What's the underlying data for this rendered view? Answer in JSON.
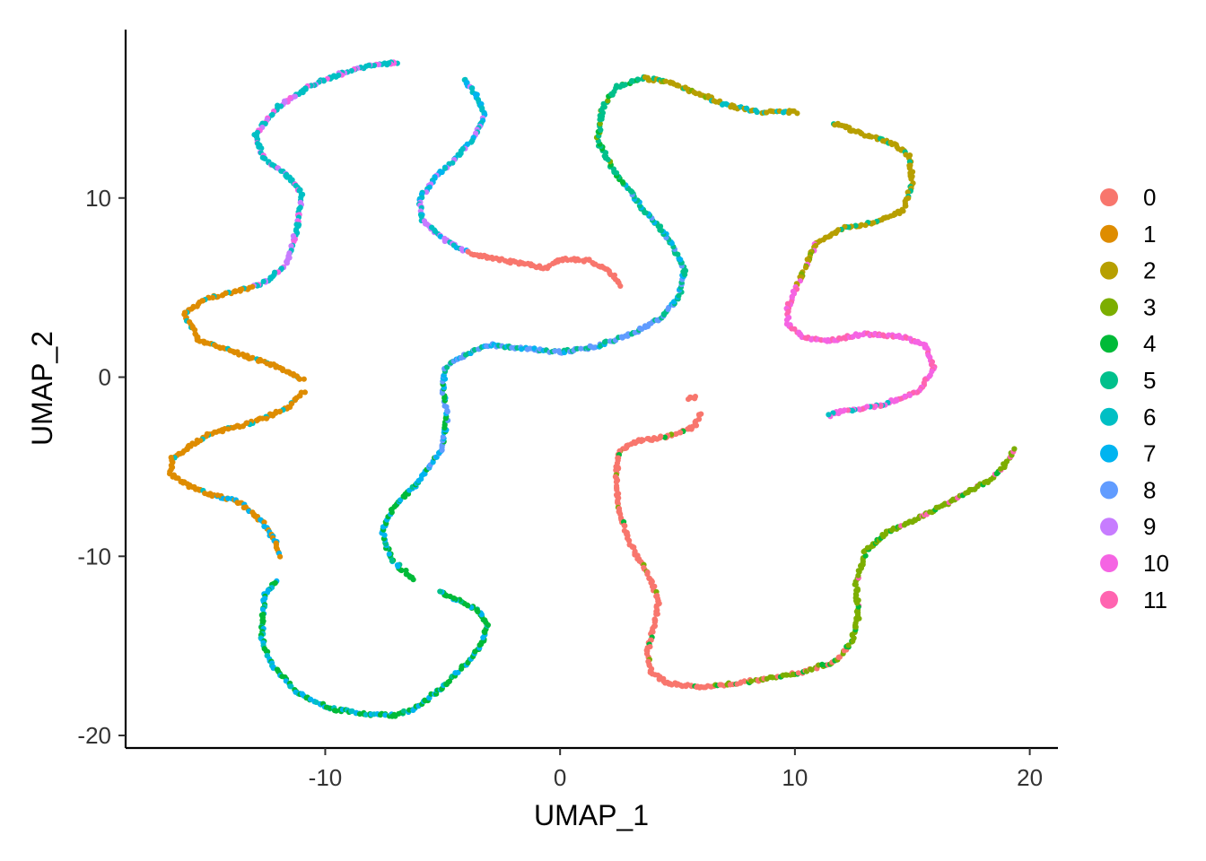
{
  "chart_data": {
    "type": "scatter",
    "title": "",
    "xlabel": "UMAP_1",
    "ylabel": "UMAP_2",
    "xlim": [
      -18.5,
      21.2
    ],
    "ylim": [
      -20.7,
      19.4
    ],
    "x_ticks": [
      -10,
      0,
      10,
      20
    ],
    "y_ticks": [
      -20,
      -10,
      0,
      10
    ],
    "x_tick_labels": [
      "-10",
      "0",
      "10",
      "20"
    ],
    "y_tick_labels": [
      "-20",
      "-10",
      "0",
      "10"
    ],
    "grid": false,
    "legend_position": "right",
    "series": [
      {
        "name": "0",
        "color": "#F8766D"
      },
      {
        "name": "1",
        "color": "#DE8C00"
      },
      {
        "name": "2",
        "color": "#B79F00"
      },
      {
        "name": "3",
        "color": "#7CAE00"
      },
      {
        "name": "4",
        "color": "#00BA38"
      },
      {
        "name": "5",
        "color": "#00C08B"
      },
      {
        "name": "6",
        "color": "#00BFC4"
      },
      {
        "name": "7",
        "color": "#00B4F0"
      },
      {
        "name": "8",
        "color": "#619CFF"
      },
      {
        "name": "9",
        "color": "#C77CFF"
      },
      {
        "name": "10",
        "color": "#F564E3"
      },
      {
        "name": "11",
        "color": "#FF64B0"
      }
    ],
    "curves": [
      {
        "id": "left-wave-top",
        "points": [
          [
            -6.9,
            17.6
          ],
          [
            -8.8,
            17.2
          ],
          [
            -10.6,
            16.3
          ],
          [
            -12.0,
            15.1
          ],
          [
            -13.0,
            13.5
          ],
          [
            -12.6,
            12.2
          ],
          [
            -11.7,
            11.4
          ],
          [
            -11.0,
            10.2
          ],
          [
            -11.2,
            8.3
          ],
          [
            -11.5,
            7.0
          ],
          [
            -11.7,
            6.2
          ],
          [
            -12.7,
            5.2
          ],
          [
            -14.0,
            4.7
          ],
          [
            -15.2,
            4.3
          ],
          [
            -16.0,
            3.5
          ],
          [
            -15.4,
            2.1
          ],
          [
            -13.4,
            1.2
          ],
          [
            -11.7,
            0.4
          ],
          [
            -10.9,
            -0.2
          ]
        ],
        "segments": [
          {
            "upto": 0.35,
            "mix": [
              [
                6,
                0.6
              ],
              [
                10,
                0.25
              ],
              [
                9,
                0.15
              ]
            ]
          },
          {
            "upto": 0.62,
            "mix": [
              [
                6,
                0.5
              ],
              [
                9,
                0.3
              ],
              [
                10,
                0.2
              ]
            ]
          },
          {
            "upto": 1.0,
            "mix": [
              [
                1,
                0.88
              ],
              [
                6,
                0.12
              ]
            ]
          }
        ]
      },
      {
        "id": "left-wave-bottom",
        "points": [
          [
            -10.9,
            -0.8
          ],
          [
            -11.7,
            -1.8
          ],
          [
            -13.0,
            -2.5
          ],
          [
            -15.0,
            -3.2
          ],
          [
            -16.5,
            -4.5
          ],
          [
            -16.6,
            -5.4
          ],
          [
            -15.5,
            -6.3
          ],
          [
            -13.6,
            -7.0
          ],
          [
            -12.6,
            -8.2
          ],
          [
            -12.1,
            -9.2
          ],
          [
            -11.9,
            -10.0
          ]
        ],
        "segments": [
          {
            "upto": 0.7,
            "mix": [
              [
                1,
                0.88
              ],
              [
                6,
                0.12
              ]
            ]
          },
          {
            "upto": 1.0,
            "mix": [
              [
                1,
                0.65
              ],
              [
                7,
                0.35
              ]
            ]
          }
        ]
      },
      {
        "id": "bottom-left-u",
        "points": [
          [
            -12.1,
            -11.3
          ],
          [
            -12.6,
            -12.2
          ],
          [
            -12.7,
            -14.5
          ],
          [
            -12.3,
            -16.0
          ],
          [
            -11.3,
            -17.5
          ],
          [
            -9.8,
            -18.5
          ],
          [
            -8.2,
            -18.8
          ],
          [
            -7.0,
            -18.9
          ],
          [
            -6.2,
            -18.5
          ],
          [
            -5.0,
            -17.3
          ],
          [
            -3.8,
            -15.7
          ],
          [
            -3.3,
            -14.8
          ],
          [
            -3.1,
            -13.8
          ],
          [
            -3.5,
            -13.0
          ],
          [
            -4.6,
            -12.3
          ],
          [
            -5.2,
            -12.0
          ]
        ],
        "segments": [
          {
            "upto": 0.5,
            "mix": [
              [
                4,
                0.55
              ],
              [
                7,
                0.3
              ],
              [
                6,
                0.15
              ]
            ]
          },
          {
            "upto": 1.0,
            "mix": [
              [
                4,
                0.72
              ],
              [
                7,
                0.2
              ],
              [
                5,
                0.08
              ]
            ]
          }
        ]
      },
      {
        "id": "center-s-lower",
        "points": [
          [
            -6.2,
            -11.3
          ],
          [
            -7.2,
            -10.2
          ],
          [
            -7.6,
            -8.6
          ],
          [
            -7.1,
            -7.3
          ],
          [
            -6.0,
            -5.8
          ],
          [
            -5.0,
            -3.9
          ],
          [
            -4.8,
            -2.2
          ],
          [
            -5.0,
            -0.7
          ],
          [
            -4.9,
            0.5
          ],
          [
            -4.0,
            1.3
          ],
          [
            -3.0,
            1.8
          ],
          [
            -1.5,
            1.6
          ],
          [
            0.0,
            1.4
          ],
          [
            1.5,
            1.7
          ],
          [
            3.0,
            2.4
          ],
          [
            4.3,
            3.3
          ],
          [
            5.1,
            4.6
          ],
          [
            5.3,
            6.0
          ],
          [
            4.6,
            7.8
          ],
          [
            3.4,
            9.6
          ],
          [
            2.3,
            11.5
          ],
          [
            1.6,
            13.2
          ],
          [
            1.8,
            15.0
          ],
          [
            2.4,
            16.2
          ],
          [
            3.6,
            16.7
          ]
        ],
        "segments": [
          {
            "upto": 0.18,
            "mix": [
              [
                4,
                0.6
              ],
              [
                7,
                0.3
              ],
              [
                5,
                0.1
              ]
            ]
          },
          {
            "upto": 0.3,
            "mix": [
              [
                8,
                0.45
              ],
              [
                7,
                0.35
              ],
              [
                4,
                0.2
              ]
            ]
          },
          {
            "upto": 0.62,
            "mix": [
              [
                8,
                0.55
              ],
              [
                5,
                0.3
              ],
              [
                7,
                0.15
              ]
            ]
          },
          {
            "upto": 0.82,
            "mix": [
              [
                5,
                0.55
              ],
              [
                7,
                0.3
              ],
              [
                8,
                0.15
              ]
            ]
          },
          {
            "upto": 1.0,
            "mix": [
              [
                5,
                0.7
              ],
              [
                4,
                0.2
              ],
              [
                3,
                0.1
              ]
            ]
          }
        ]
      },
      {
        "id": "center-hook",
        "points": [
          [
            -4.1,
            16.7
          ],
          [
            -3.6,
            15.8
          ],
          [
            -3.2,
            14.6
          ],
          [
            -3.7,
            13.3
          ],
          [
            -4.6,
            12.0
          ],
          [
            -5.4,
            11.0
          ],
          [
            -6.0,
            9.9
          ],
          [
            -5.9,
            8.8
          ],
          [
            -5.0,
            7.7
          ],
          [
            -3.8,
            6.9
          ],
          [
            -2.3,
            6.5
          ],
          [
            -0.6,
            6.1
          ],
          [
            0.0,
            6.6
          ],
          [
            1.2,
            6.5
          ],
          [
            2.1,
            5.9
          ],
          [
            2.6,
            5.1
          ]
        ],
        "segments": [
          {
            "upto": 0.38,
            "mix": [
              [
                6,
                0.45
              ],
              [
                7,
                0.3
              ],
              [
                9,
                0.25
              ]
            ]
          },
          {
            "upto": 0.58,
            "mix": [
              [
                9,
                0.55
              ],
              [
                6,
                0.3
              ],
              [
                7,
                0.15
              ]
            ]
          },
          {
            "upto": 1.0,
            "mix": [
              [
                0,
                1.0
              ]
            ]
          }
        ]
      },
      {
        "id": "top-right-arc",
        "points": [
          [
            3.6,
            16.7
          ],
          [
            4.5,
            16.5
          ],
          [
            6.0,
            15.8
          ],
          [
            7.0,
            15.2
          ],
          [
            8.5,
            14.8
          ],
          [
            10.1,
            14.8
          ]
        ],
        "segments": [
          {
            "upto": 0.45,
            "mix": [
              [
                2,
                0.75
              ],
              [
                5,
                0.15
              ],
              [
                3,
                0.1
              ]
            ]
          },
          {
            "upto": 1.0,
            "mix": [
              [
                2,
                0.65
              ],
              [
                6,
                0.35
              ]
            ]
          }
        ]
      },
      {
        "id": "right-wave-upper",
        "points": [
          [
            11.6,
            14.2
          ],
          [
            13.0,
            13.5
          ],
          [
            14.3,
            13.0
          ],
          [
            14.9,
            12.3
          ],
          [
            15.0,
            10.8
          ],
          [
            14.6,
            9.3
          ],
          [
            13.6,
            8.7
          ],
          [
            12.0,
            8.3
          ],
          [
            10.9,
            7.5
          ],
          [
            10.4,
            6.0
          ],
          [
            10.0,
            4.8
          ],
          [
            9.7,
            3.9
          ],
          [
            9.7,
            3.0
          ],
          [
            10.3,
            2.2
          ],
          [
            11.4,
            2.0
          ],
          [
            12.8,
            2.4
          ],
          [
            14.5,
            2.3
          ],
          [
            15.6,
            1.7
          ],
          [
            15.9,
            0.5
          ],
          [
            15.3,
            -0.8
          ],
          [
            13.6,
            -1.6
          ],
          [
            11.7,
            -2.0
          ],
          [
            11.4,
            -2.2
          ]
        ],
        "segments": [
          {
            "upto": 0.38,
            "mix": [
              [
                2,
                0.88
              ],
              [
                5,
                0.12
              ]
            ]
          },
          {
            "upto": 0.46,
            "mix": [
              [
                2,
                0.6
              ],
              [
                3,
                0.25
              ],
              [
                10,
                0.15
              ]
            ]
          },
          {
            "upto": 0.9,
            "mix": [
              [
                10,
                0.72
              ],
              [
                11,
                0.28
              ]
            ]
          },
          {
            "upto": 1.0,
            "mix": [
              [
                10,
                0.45
              ],
              [
                6,
                0.35
              ],
              [
                11,
                0.2
              ]
            ]
          }
        ]
      },
      {
        "id": "bottom-right-s",
        "points": [
          [
            5.5,
            -1.2
          ],
          [
            5.8,
            -1.1
          ]
        ],
        "segments": [
          {
            "upto": 1.0,
            "mix": [
              [
                0,
                1.0
              ]
            ]
          }
        ]
      },
      {
        "id": "bottom-right-j",
        "points": [
          [
            6.0,
            -2.0
          ],
          [
            5.7,
            -2.8
          ],
          [
            4.6,
            -3.3
          ],
          [
            3.2,
            -3.6
          ],
          [
            2.5,
            -4.2
          ],
          [
            2.4,
            -5.4
          ],
          [
            2.5,
            -7.6
          ],
          [
            3.1,
            -9.6
          ],
          [
            3.8,
            -11.2
          ],
          [
            4.2,
            -12.5
          ],
          [
            4.0,
            -13.9
          ],
          [
            3.7,
            -15.4
          ],
          [
            3.9,
            -16.5
          ],
          [
            4.6,
            -17.1
          ],
          [
            6.0,
            -17.3
          ],
          [
            7.5,
            -17.1
          ],
          [
            9.0,
            -16.8
          ],
          [
            10.5,
            -16.4
          ],
          [
            11.8,
            -15.8
          ],
          [
            12.4,
            -14.8
          ],
          [
            12.7,
            -13.3
          ],
          [
            12.6,
            -11.5
          ],
          [
            13.0,
            -9.7
          ],
          [
            14.0,
            -8.6
          ],
          [
            15.5,
            -7.7
          ],
          [
            17.0,
            -6.7
          ],
          [
            18.5,
            -5.6
          ],
          [
            19.2,
            -4.4
          ],
          [
            19.3,
            -4.0
          ]
        ],
        "segments": [
          {
            "upto": 0.52,
            "mix": [
              [
                0,
                0.88
              ],
              [
                4,
                0.07
              ],
              [
                3,
                0.05
              ]
            ]
          },
          {
            "upto": 0.66,
            "mix": [
              [
                0,
                0.45
              ],
              [
                3,
                0.45
              ],
              [
                4,
                0.1
              ]
            ]
          },
          {
            "upto": 1.0,
            "mix": [
              [
                3,
                0.82
              ],
              [
                4,
                0.1
              ],
              [
                11,
                0.08
              ]
            ]
          }
        ]
      }
    ]
  }
}
